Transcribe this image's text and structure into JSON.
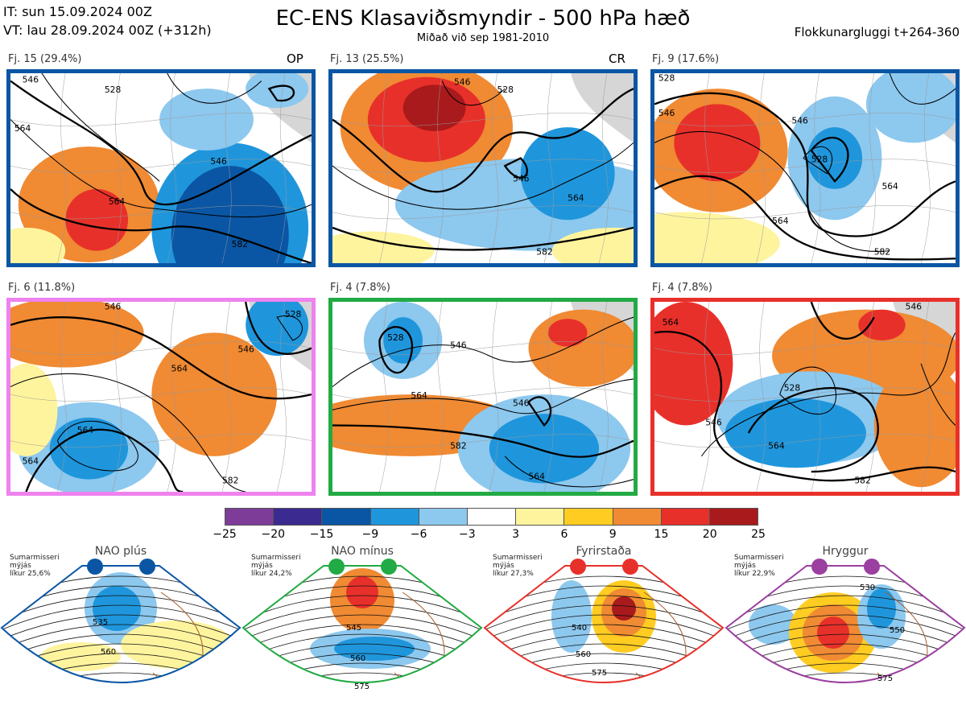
{
  "header": {
    "initial_time": "IT: sun 15.09.2024 00Z",
    "valid_time": "VT: lau 28.09.2024 00Z  (+312h)",
    "title": "EC-ENS Klasaviðsmyndir - 500 hPa hæð",
    "subtitle": "Miðað við sep 1981-2010",
    "window": "Flokkunargluggi t+264-360"
  },
  "clusters": [
    {
      "label": "Fj. 15 (29.4%)",
      "tag": "OP",
      "border_color": "#0a56a4",
      "contours": [
        "546",
        "528",
        "564",
        "546",
        "564",
        "582"
      ]
    },
    {
      "label": "Fj. 13 (25.5%)",
      "tag": "CR",
      "border_color": "#0a56a4",
      "contours": [
        "546",
        "528",
        "546",
        "564",
        "582"
      ]
    },
    {
      "label": "Fj. 9 (17.6%)",
      "tag": "",
      "border_color": "#0a56a4",
      "contours": [
        "528",
        "546",
        "546",
        "528",
        "564",
        "564",
        "582"
      ]
    },
    {
      "label": "Fj. 6 (11.8%)",
      "tag": "",
      "border_color": "#ee82ee",
      "contours": [
        "546",
        "528",
        "546",
        "564",
        "564",
        "564",
        "582"
      ]
    },
    {
      "label": "Fj. 4 (7.8%)",
      "tag": "",
      "border_color": "#22aa44",
      "contours": [
        "528",
        "546",
        "564",
        "546",
        "582",
        "564"
      ]
    },
    {
      "label": "Fj. 4 (7.8%)",
      "tag": "",
      "border_color": "#e8302a",
      "contours": [
        "564",
        "546",
        "528",
        "546",
        "564",
        "582"
      ]
    }
  ],
  "legend": {
    "ticks": [
      "−25",
      "−20",
      "−15",
      "−9",
      "−6",
      "−3",
      "3",
      "6",
      "9",
      "15",
      "20",
      "25"
    ],
    "colors": [
      "#7d3c98",
      "#3b2a8f",
      "#0a56a4",
      "#1f96dc",
      "#8dc8ee",
      "#ffffff",
      "#fff49e",
      "#ffcc22",
      "#f08a33",
      "#e8302a",
      "#a91a1c"
    ]
  },
  "regimes": [
    {
      "name": "NAO plús",
      "note": [
        "Sumarmisseri",
        "mýjás",
        "líkur 25,6%"
      ],
      "color": "#0a56a4",
      "contours": [
        "535",
        "560"
      ]
    },
    {
      "name": "NAO mínus",
      "note": [
        "Sumarmisseri",
        "mýjás",
        "líkur 24,2%"
      ],
      "color": "#22aa44",
      "contours": [
        "545",
        "560",
        "575"
      ]
    },
    {
      "name": "Fyrirstaða",
      "note": [
        "Sumarmisseri",
        "mýjás",
        "líkur 27,3%"
      ],
      "color": "#e8302a",
      "contours": [
        "540",
        "560",
        "575"
      ]
    },
    {
      "name": "Hryggur",
      "note": [
        "Sumarmisseri",
        "mýjás",
        "líkur 22,9%"
      ],
      "color": "#9b3fa0",
      "contours": [
        "530",
        "550",
        "575"
      ]
    }
  ]
}
